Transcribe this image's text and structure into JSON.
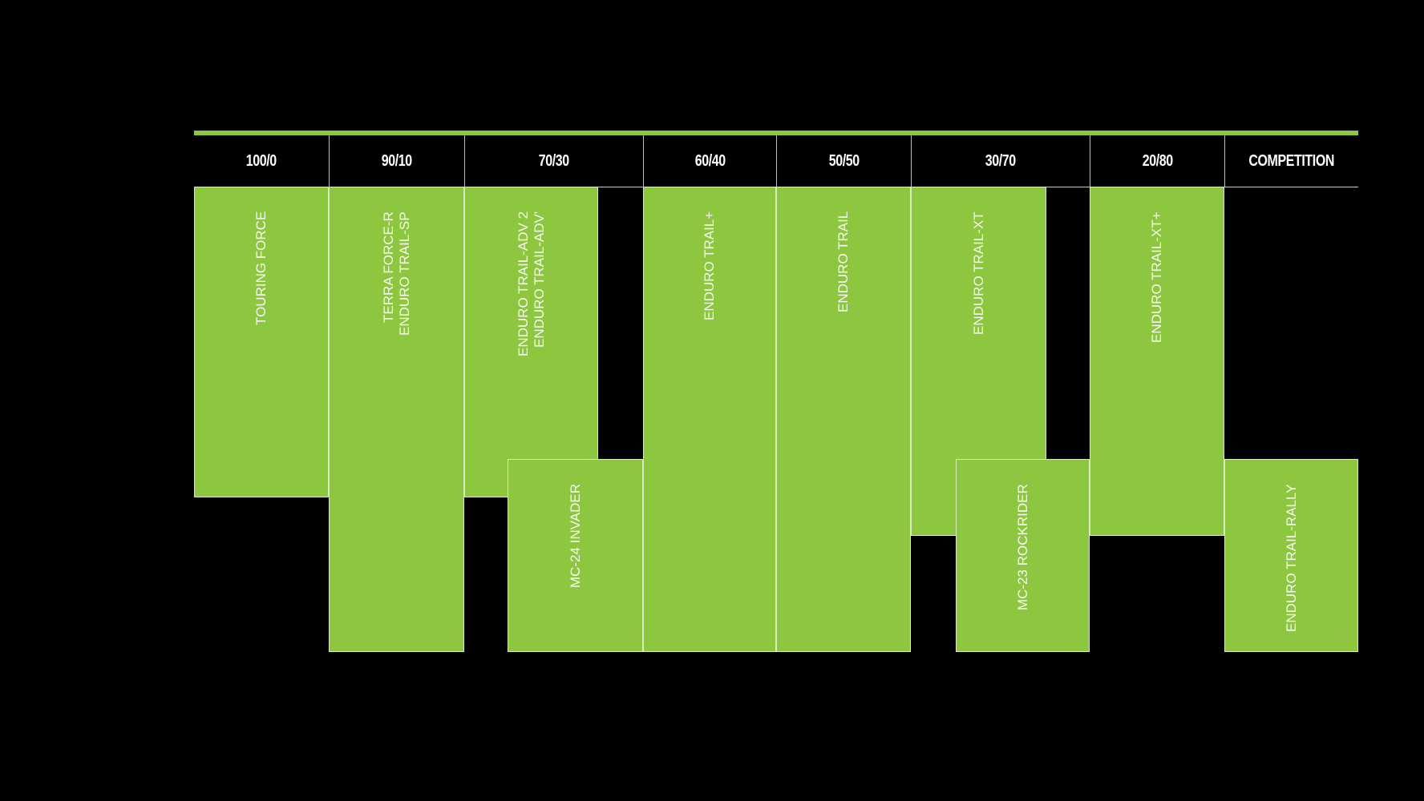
{
  "colors": {
    "background": "#000000",
    "accent": "#8dc63f",
    "text": "#ffffff"
  },
  "headers": [
    "100/0",
    "90/10",
    "70/30",
    "60/40",
    "50/50",
    "30/70",
    "20/80",
    "COMPETITION"
  ],
  "tires": [
    {
      "lines": [
        "TOURING FORCE"
      ]
    },
    {
      "lines": [
        "TERRA FORCE-R",
        "ENDURO TRAIL-SP"
      ]
    },
    {
      "lines": [
        "ENDURO TRAIL-ADV 2",
        "ENDURO TRAIL-ADV'"
      ]
    },
    {
      "lines": [
        "MC-24 INVADER"
      ]
    },
    {
      "lines": [
        "ENDURO TRAIL+"
      ]
    },
    {
      "lines": [
        "ENDURO TRAIL"
      ]
    },
    {
      "lines": [
        "ENDURO TRAIL-XT"
      ]
    },
    {
      "lines": [
        "MC-23 ROCKRIDER"
      ]
    },
    {
      "lines": [
        "ENDURO TRAIL-XT+"
      ]
    },
    {
      "lines": [
        "ENDURO TRAIL-RALLY"
      ]
    }
  ]
}
